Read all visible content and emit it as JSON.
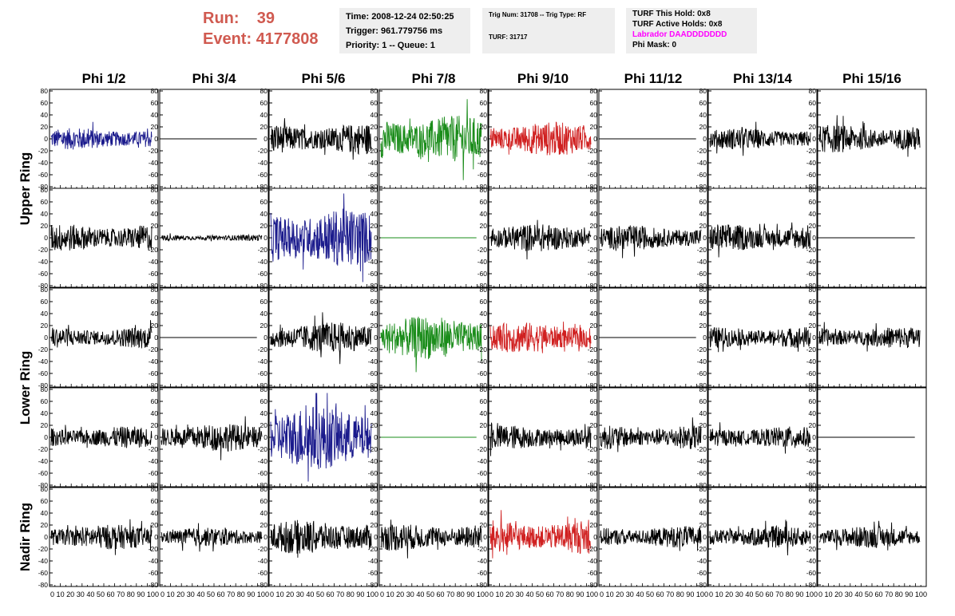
{
  "header": {
    "run_label": "Run:",
    "run_value": "39",
    "event_label": "Event:",
    "event_value": "4177808",
    "info1": [
      "Time: 2008-12-24 02:50:25",
      "Trigger: 961.779756 ms",
      "Priority: 1 -- Queue: 1"
    ],
    "info2": [
      "Trig Num: 31708 -- Trig Type: RF",
      "TURF: 31717"
    ],
    "info3": [
      "TURF This Hold: 0x8",
      "TURF Active Holds: 0x8",
      "Labrador DAADDDDDDD",
      "Phi Mask: 0"
    ],
    "labrador_color": "#ff00ff"
  },
  "colors": {
    "blue": "#1a1a8c",
    "green": "#1a8c1a",
    "red": "#d02020",
    "black": "#000000",
    "title_red": "#d05a50"
  },
  "chart_data": {
    "type": "line",
    "columns": [
      "Phi 1/2",
      "Phi 3/4",
      "Phi 5/6",
      "Phi 7/8",
      "Phi 9/10",
      "Phi 11/12",
      "Phi 13/14",
      "Phi 15/16"
    ],
    "row_groups": [
      "Upper Ring",
      "Lower Ring",
      "Nadir Ring"
    ],
    "rows_per_group": [
      2,
      2,
      1
    ],
    "y_ticks": [
      80,
      60,
      40,
      20,
      0,
      -20,
      -40,
      -60,
      -80
    ],
    "ylim": [
      -80,
      80
    ],
    "x_tick_labels": "0 10 20 30 40 50 60 70 80 90 100",
    "xlim": [
      0,
      100
    ],
    "traces": [
      [
        "blue",
        "flat",
        "black",
        "green",
        "red",
        "flat",
        "black",
        "black"
      ],
      [
        "black",
        "quiet",
        "blue",
        "flat-green",
        "black",
        "black",
        "black",
        "flat"
      ],
      [
        "black",
        "flat",
        "black",
        "green",
        "red",
        "flat",
        "black",
        "black"
      ],
      [
        "black",
        "black",
        "blue",
        "flat-green",
        "black",
        "black",
        "black",
        "flat"
      ],
      [
        "black",
        "black",
        "black",
        "black",
        "red",
        "black",
        "black",
        "black"
      ]
    ],
    "amplitudes": [
      [
        14,
        0,
        20,
        30,
        22,
        0,
        14,
        18
      ],
      [
        18,
        4,
        38,
        0,
        18,
        16,
        18,
        0
      ],
      [
        14,
        0,
        20,
        28,
        20,
        0,
        14,
        14
      ],
      [
        14,
        18,
        42,
        0,
        16,
        16,
        14,
        0
      ],
      [
        16,
        12,
        22,
        18,
        22,
        14,
        14,
        14
      ]
    ]
  }
}
